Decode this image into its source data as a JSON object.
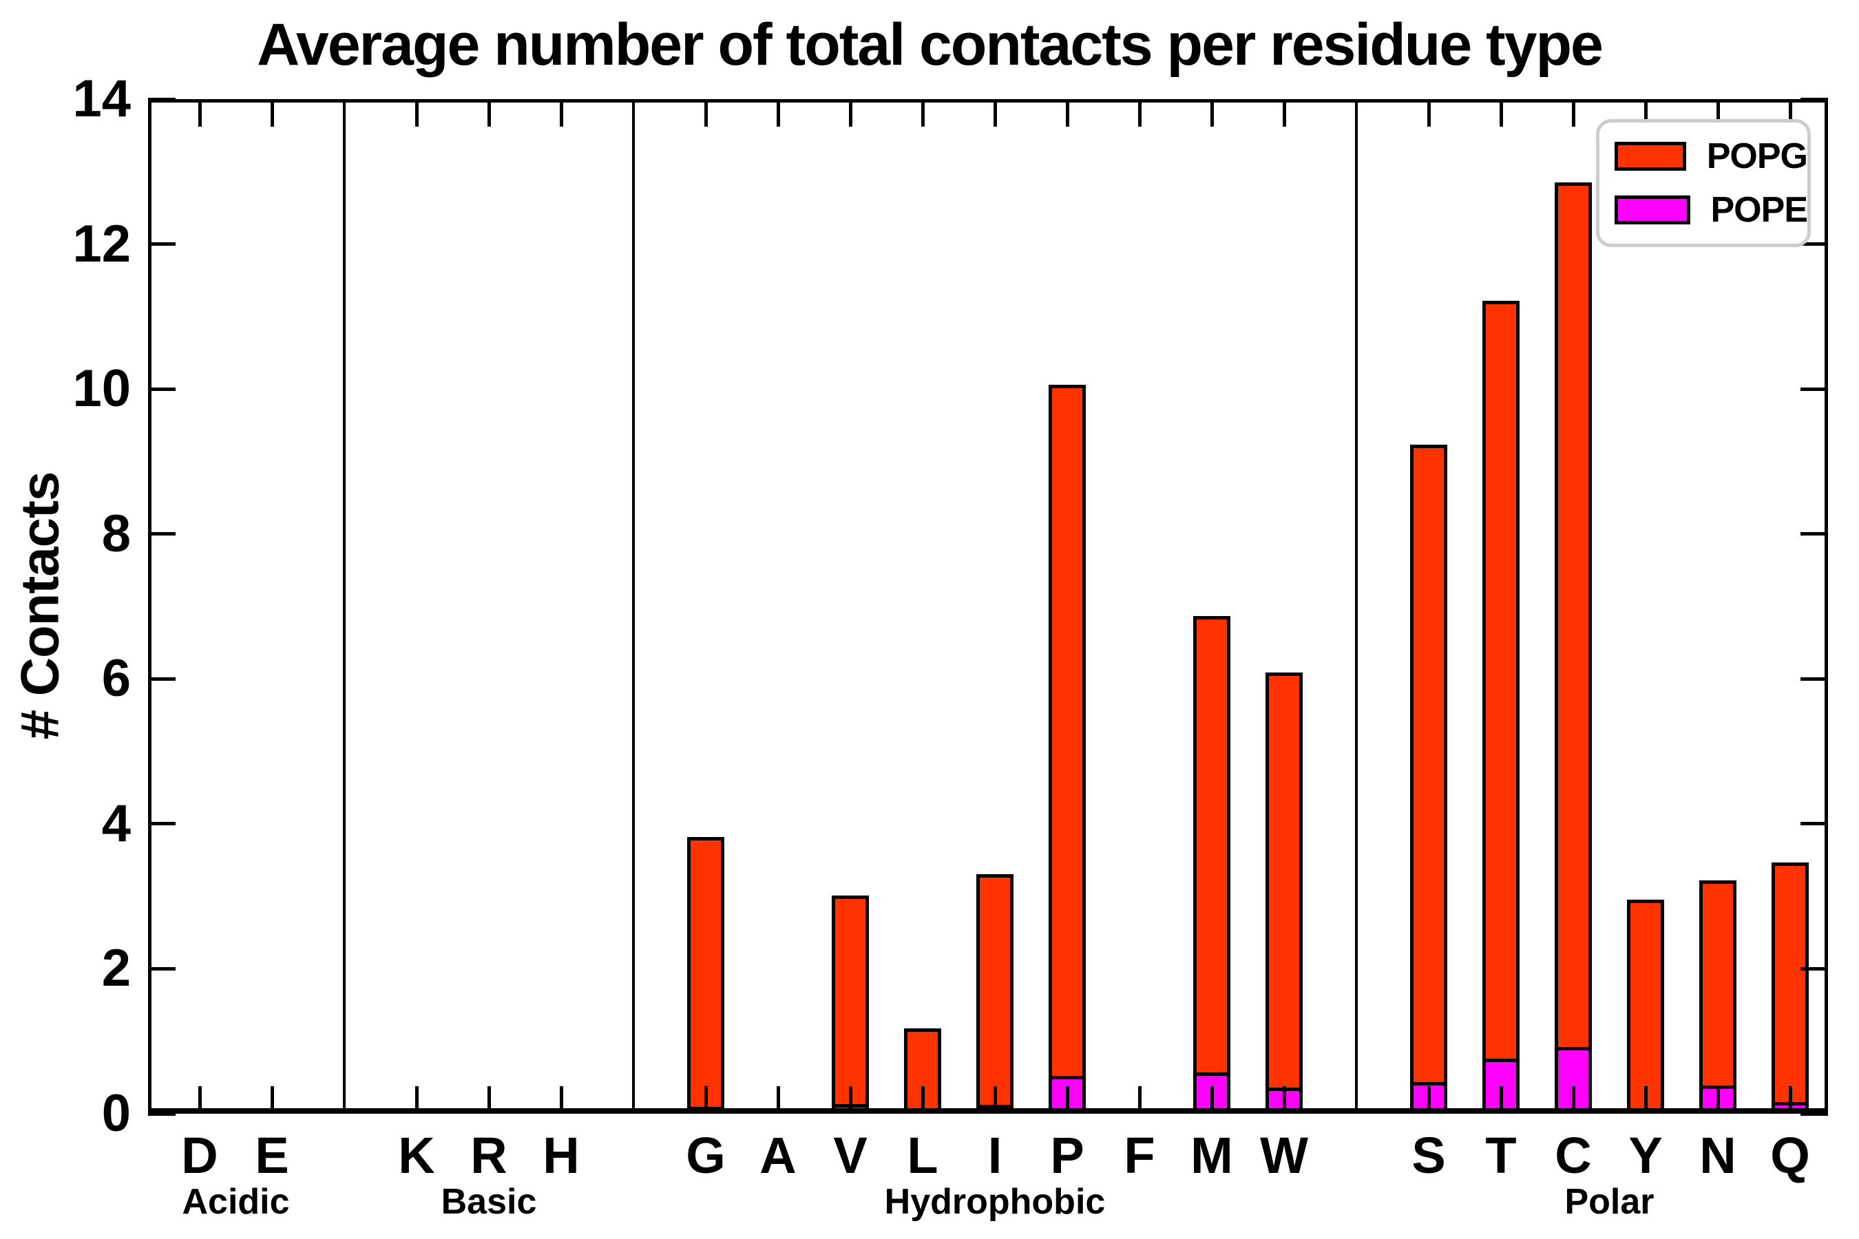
{
  "chart_data": {
    "type": "bar",
    "stacked": true,
    "title": "Average number of total contacts per residue type",
    "ylabel": "# Contacts",
    "xlabel": "",
    "ylim": [
      0,
      14
    ],
    "yticks": [
      0,
      2,
      4,
      6,
      8,
      10,
      12,
      14
    ],
    "grid": false,
    "legend_position": "upper right",
    "series_names": [
      "POPG",
      "POPE"
    ],
    "stack_order_bottom_to_top": [
      "POPE",
      "POPG"
    ],
    "groups": [
      {
        "label": "Acidic",
        "categories": [
          "D",
          "E"
        ],
        "series": {
          "POPE": [
            0.01,
            0.01
          ],
          "POPG": [
            0.01,
            0.01
          ]
        }
      },
      {
        "label": "Basic",
        "categories": [
          "K",
          "R",
          "H"
        ],
        "series": {
          "POPE": [
            0.01,
            0.01,
            0.01
          ],
          "POPG": [
            0.01,
            0.01,
            0.01
          ]
        }
      },
      {
        "label": "Hydrophobic",
        "categories": [
          "G",
          "A",
          "V",
          "L",
          "I",
          "P",
          "F",
          "M",
          "W"
        ],
        "series": {
          "POPE": [
            0.09,
            0.01,
            0.13,
            0.05,
            0.12,
            0.52,
            0.01,
            0.57,
            0.36
          ],
          "POPG": [
            3.73,
            0.01,
            2.88,
            1.13,
            3.19,
            9.54,
            0.01,
            6.3,
            5.73
          ]
        }
      },
      {
        "label": "Polar",
        "categories": [
          "S",
          "T",
          "C",
          "Y",
          "N",
          "Q"
        ],
        "series": {
          "POPE": [
            0.44,
            0.76,
            0.92,
            0.03,
            0.39,
            0.16
          ],
          "POPG": [
            8.79,
            10.46,
            11.93,
            2.92,
            2.83,
            3.31
          ]
        }
      }
    ]
  },
  "colors": {
    "POPG": "#ff3300",
    "POPE": "#ff00ff",
    "edge": "#000000",
    "legend_border": "#cccccc",
    "background": "#ffffff"
  }
}
